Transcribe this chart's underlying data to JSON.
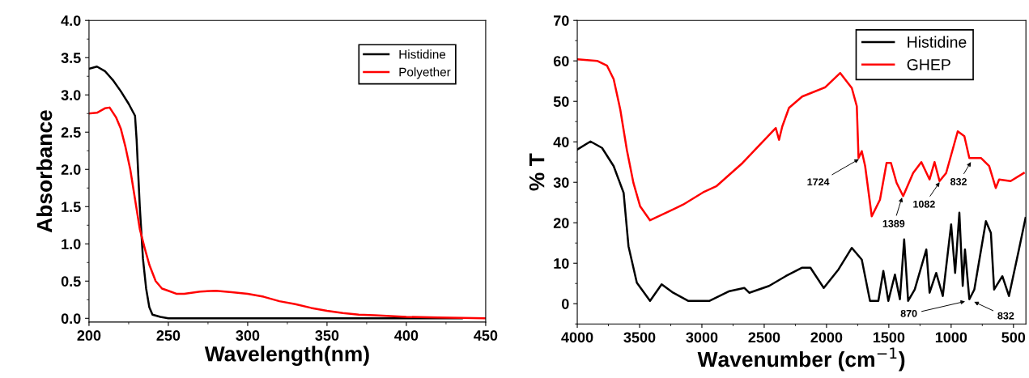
{
  "chart_data": [
    {
      "type": "line",
      "xlabel": "Wavelength(nm)",
      "ylabel": "Absorbance",
      "xlim": [
        200,
        450
      ],
      "ylim": [
        -0.05,
        4.0
      ],
      "xticks": [
        200,
        250,
        300,
        350,
        400,
        450
      ],
      "yticks": [
        {
          "value": 0,
          "label": "0.0"
        },
        0.5,
        {
          "value": 1,
          "label": "1.0"
        },
        1.5,
        {
          "value": 2,
          "label": "2.0"
        },
        2.5,
        {
          "value": 3,
          "label": "3.0"
        },
        3.5,
        {
          "value": 4,
          "label": "4.0"
        }
      ],
      "legend": "top right",
      "grid": false,
      "marker": "none",
      "line_style": "solid",
      "series": [
        {
          "name": "Histidine",
          "color": "#000000",
          "x": [
            200,
            205,
            210,
            215,
            220,
            225,
            229,
            230,
            232,
            234,
            236,
            238,
            240,
            245,
            250,
            300,
            350,
            400,
            435
          ],
          "values": [
            3.35,
            3.38,
            3.32,
            3.2,
            3.05,
            2.88,
            2.72,
            2.4,
            1.5,
            0.8,
            0.4,
            0.15,
            0.05,
            0.02,
            0.0,
            0.0,
            0.0,
            0.0,
            0.0
          ]
        },
        {
          "name": "Polyether",
          "color": "#ff0000",
          "x": [
            200,
            205,
            210,
            213,
            217,
            220,
            223,
            226,
            229,
            232,
            235,
            238,
            242,
            246,
            250,
            255,
            260,
            270,
            280,
            290,
            300,
            310,
            320,
            330,
            340,
            350,
            360,
            370,
            380,
            400,
            420,
            450
          ],
          "values": [
            2.75,
            2.76,
            2.82,
            2.83,
            2.7,
            2.55,
            2.3,
            2.0,
            1.6,
            1.2,
            0.95,
            0.72,
            0.5,
            0.4,
            0.37,
            0.33,
            0.33,
            0.36,
            0.37,
            0.35,
            0.33,
            0.29,
            0.23,
            0.19,
            0.14,
            0.1,
            0.07,
            0.05,
            0.04,
            0.02,
            0.01,
            0.0
          ]
        }
      ]
    },
    {
      "type": "line",
      "xlabel": "Wavenumber (cm$^{−1}$)",
      "ylabel": "% T",
      "xlim": [
        4000,
        400
      ],
      "ylim": [
        -5,
        70
      ],
      "xticks": [
        4000,
        3500,
        3000,
        2500,
        2000,
        1500,
        1000,
        500
      ],
      "yticks": [
        0,
        10,
        20,
        30,
        40,
        50,
        60,
        70
      ],
      "legend": "top right",
      "grid": false,
      "marker": "none",
      "line_style": "solid",
      "series": [
        {
          "name": "Histidine",
          "color": "#000000",
          "x": [
            4000,
            3894,
            3801,
            3708,
            3628,
            3589,
            3522,
            3416,
            3323,
            3230,
            3111,
            2938,
            2779,
            2660,
            2620,
            2461,
            2328,
            2195,
            2129,
            2022,
            1903,
            1797,
            1717,
            1651,
            1584,
            1544,
            1504,
            1451,
            1411,
            1377,
            1345,
            1292,
            1199,
            1173,
            1120,
            1067,
            1000,
            968,
            934,
            907,
            889,
            854,
            814,
            721,
            681,
            655,
            589,
            536,
            456,
            403
          ],
          "values": [
            38.1,
            40.1,
            38.5,
            34,
            27.4,
            14.2,
            5.2,
            0.7,
            4.8,
            2.7,
            0.7,
            0.7,
            3.1,
            3.9,
            2.7,
            4.4,
            6.8,
            8.9,
            8.9,
            3.9,
            8.5,
            13.8,
            10.9,
            0.7,
            0.7,
            8.1,
            0.7,
            7.2,
            1.1,
            15.9,
            0.7,
            3.5,
            13.4,
            2.7,
            7.6,
            1.9,
            19.6,
            7.6,
            22.5,
            4.4,
            13.4,
            1.1,
            3.5,
            20.4,
            17.5,
            3.5,
            6.8,
            1.9,
            13.4,
            21.2
          ]
        },
        {
          "name": "GHEP",
          "color": "#ff0000",
          "x": [
            4000,
            3841,
            3761,
            3708,
            3655,
            3602,
            3549,
            3496,
            3416,
            3257,
            3150,
            2991,
            2885,
            2673,
            2407,
            2381,
            2355,
            2301,
            2195,
            2009,
            1890,
            1797,
            1757,
            1743,
            1717,
            1690,
            1637,
            1571,
            1518,
            1483,
            1438,
            1385,
            1305,
            1239,
            1173,
            1133,
            1093,
            1040,
            947,
            894,
            854,
            761,
            695,
            642,
            615,
            523,
            417
          ],
          "values": [
            60.4,
            60,
            58.8,
            55.5,
            48,
            38,
            29.8,
            24.1,
            20.6,
            22.9,
            24.5,
            27.5,
            29,
            34.8,
            43.4,
            40.5,
            43.8,
            48.4,
            51.2,
            53.5,
            57,
            53.3,
            48.8,
            36,
            37.7,
            34,
            21.6,
            25.7,
            34.8,
            34.8,
            29.9,
            26.6,
            32.3,
            35,
            30.7,
            35,
            30.3,
            32.3,
            42.6,
            41.4,
            36,
            36,
            34,
            28.6,
            30.7,
            30.3,
            32.3
          ]
        }
      ],
      "annotations": [
        {
          "text": "1724",
          "x": 1724,
          "y": 36
        },
        {
          "text": "1389",
          "x": 1389,
          "y": 26.8
        },
        {
          "text": "1082",
          "x": 1082,
          "y": 30.5
        },
        {
          "text": "832",
          "x": 832,
          "y": 35.5
        },
        {
          "text": "870",
          "x": 870,
          "y": 0.7
        },
        {
          "text": "832",
          "x": 832,
          "y": 0.7
        }
      ]
    }
  ]
}
